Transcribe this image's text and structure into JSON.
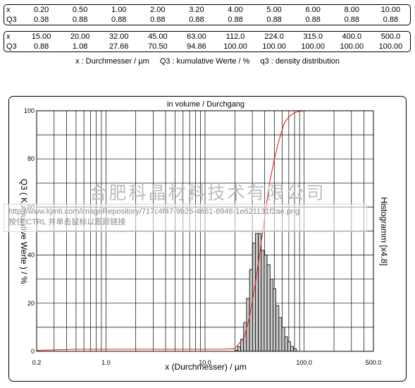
{
  "table1": {
    "x_label": "x",
    "q3_label": "Q3",
    "x": [
      "0.20",
      "0.50",
      "1.00",
      "2.00",
      "3.20",
      "4.00",
      "5.00",
      "6.00",
      "8.00",
      "10.00"
    ],
    "q3": [
      "0.38",
      "0.88",
      "0.88",
      "0.88",
      "0.88",
      "0.88",
      "0.88",
      "0.88",
      "0.88",
      "0.88"
    ]
  },
  "table2": {
    "x_label": "x",
    "q3_label": "Q3",
    "x": [
      "15.00",
      "20.00",
      "32.00",
      "45.00",
      "63.00",
      "112.0",
      "224.0",
      "315.0",
      "400.0",
      "500.0"
    ],
    "q3": [
      "0.88",
      "1.08",
      "27.66",
      "70.50",
      "94.86",
      "100.00",
      "100.00",
      "100.00",
      "100.00",
      "100.00"
    ]
  },
  "legend": {
    "x": "x : Durchmesser / µm",
    "q3": "Q3 : kumulative Werte / %",
    "dens": "q3 : density distribution"
  },
  "watermark": "合肥科晶材料技术有限公司",
  "link_tip": {
    "url": "http://www.kjmti.com/imageRepository/717c4f47-9b26-4661-8948-1e621131f2ae.png",
    "hint": "按住 CTRL 并单击鼠标以跟踪链接"
  },
  "chart_data": {
    "type": "line",
    "title": "in volume / Durchgang",
    "xlabel": "x (Durchmesser) / µm",
    "ylabel": "Q3 ( Kumulative Werte ) / %",
    "y2label": "Histogramm [x4.8]",
    "xscale": "log",
    "xlim": [
      0.2,
      500
    ],
    "ylim": [
      0,
      100
    ],
    "xtick_labels": [
      {
        "value": 0.2,
        "label": "0.2"
      },
      {
        "value": 1,
        "label": "1.0"
      },
      {
        "value": 10,
        "label": "10.0"
      },
      {
        "value": 100,
        "label": "100.0"
      },
      {
        "value": 500,
        "label": "500.0"
      }
    ],
    "ytick_labels": [
      {
        "value": 0,
        "label": "0"
      },
      {
        "value": 20,
        "label": "20"
      },
      {
        "value": 40,
        "label": "40"
      },
      {
        "value": 60,
        "label": "60"
      },
      {
        "value": 80,
        "label": "80"
      },
      {
        "value": 100,
        "label": "100"
      }
    ],
    "grid": true,
    "series": [
      {
        "color": "#e8241c",
        "x": [
          0.2,
          0.5,
          1,
          2,
          5,
          10,
          15,
          20,
          25,
          28,
          32,
          36,
          40,
          45,
          50,
          56,
          63,
          70,
          80,
          90,
          100,
          112,
          224,
          500
        ],
        "y": [
          0.38,
          0.88,
          0.88,
          0.88,
          0.88,
          0.88,
          0.88,
          1.08,
          6,
          14,
          27.66,
          42,
          56,
          70.5,
          80,
          88,
          94.86,
          97.5,
          99.2,
          99.8,
          100,
          100,
          100,
          100
        ]
      }
    ],
    "histogram": {
      "fill": "#c8c8c8",
      "x": [
        20.0,
        21.4,
        22.9,
        24.5,
        26.2,
        28.1,
        30.1,
        32.2,
        34.5,
        36.9,
        39.5,
        42.3,
        45.3,
        48.5,
        51.9,
        55.6,
        59.5,
        63.7,
        68.2,
        73.0,
        78.2,
        83.7
      ],
      "y": [
        0.5,
        2,
        5,
        12,
        22,
        34,
        45,
        49,
        49,
        42,
        40,
        36,
        30,
        26,
        19,
        14,
        10,
        6,
        4,
        2,
        1,
        0
      ]
    }
  }
}
